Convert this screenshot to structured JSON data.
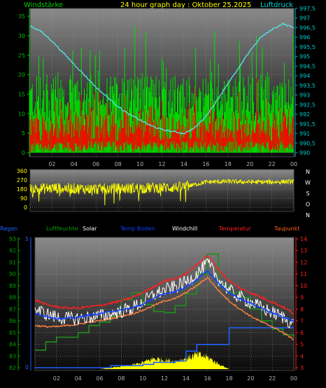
{
  "header": {
    "title": "24 hour graph day : Oktober 25.2025",
    "left_label": "Windstärke",
    "right_label": "Luftdruck"
  },
  "colors": {
    "wind_gust": "#00e000",
    "wind_avg": "#ff0000",
    "pressure": "#55e0e0",
    "direction": "#ffff00",
    "rain": "#2060ff",
    "humidity": "#00a000",
    "solar": "#ffff00",
    "ground_temp": "#1040ff",
    "windchill": "#ffffff",
    "temperature": "#ff2020",
    "dewpoint": "#ff8040"
  },
  "time_ticks": [
    "02",
    "04",
    "06",
    "08",
    "10",
    "12",
    "14",
    "16",
    "18",
    "20",
    "22",
    "00"
  ],
  "chart_data": [
    {
      "type": "bar",
      "name": "wind",
      "ylim": [
        0,
        37
      ],
      "y_ticks": [
        "0",
        "5",
        "10",
        "15",
        "20",
        "25",
        "30",
        "35"
      ],
      "series": [
        {
          "name": "Windstärke",
          "description_values": {
            "gust_typical_range": [
              10,
              20
            ],
            "avg_typical_range": [
              3,
              10
            ]
          }
        }
      ]
    },
    {
      "type": "line",
      "name": "pressure",
      "ylim": [
        990,
        997.5
      ],
      "y_ticks": [
        "990",
        "990,5",
        "991",
        "991,5",
        "992",
        "992,5",
        "993",
        "993,5",
        "994",
        "994,5",
        "995",
        "995,5",
        "996",
        "996,5",
        "997",
        "997,5"
      ],
      "series": [
        {
          "name": "Luftdruck",
          "hours": [
            0,
            1,
            2,
            3,
            4,
            5,
            6,
            7,
            8,
            9,
            10,
            11,
            12,
            13,
            14,
            15,
            16,
            17,
            18,
            19,
            20,
            21,
            22,
            23,
            24
          ],
          "values": [
            996.6,
            996.3,
            995.8,
            995.2,
            994.6,
            994.0,
            993.4,
            992.9,
            992.4,
            992.0,
            991.7,
            991.4,
            991.2,
            991.1,
            991.0,
            991.3,
            991.9,
            992.7,
            993.6,
            994.4,
            995.3,
            996.0,
            996.4,
            996.7,
            996.5
          ]
        }
      ]
    },
    {
      "type": "line",
      "name": "wind-direction",
      "ylim": [
        0,
        360
      ],
      "y_ticks": [
        "0",
        "90",
        "180",
        "270",
        "360"
      ],
      "right_labels": [
        "N",
        "W",
        "S",
        "O",
        "N"
      ],
      "series": [
        {
          "name": "direction",
          "hours": [
            0,
            2,
            4,
            6,
            8,
            10,
            12,
            14,
            16,
            18,
            20,
            22,
            24
          ],
          "values": [
            180,
            190,
            185,
            180,
            185,
            190,
            195,
            200,
            250,
            255,
            250,
            250,
            255
          ]
        }
      ]
    },
    {
      "type": "line",
      "name": "climate",
      "legend": [
        "Regen",
        "Luftfeuchte",
        "Solar",
        "Temp Boden",
        "Windchill",
        "Temperatur",
        "Taupunkt"
      ],
      "left_axis_humidity": {
        "ylim": [
          82,
          93
        ],
        "ticks": [
          "82",
          "83",
          "84",
          "85",
          "86",
          "87",
          "88",
          "89",
          "90",
          "91",
          "92",
          "93"
        ]
      },
      "left_axis_rain": {
        "ticks": [
          "0",
          "5"
        ]
      },
      "right_axis_temp": {
        "ylim": [
          3,
          14
        ],
        "ticks": [
          "3",
          "4",
          "5",
          "6",
          "7",
          "8",
          "9",
          "10",
          "11",
          "12",
          "13",
          "14"
        ]
      },
      "series": [
        {
          "name": "Temperatur",
          "hours": [
            0,
            1,
            2,
            3,
            4,
            5,
            6,
            7,
            8,
            9,
            10,
            11,
            12,
            13,
            14,
            15,
            16,
            17,
            18,
            19,
            20,
            21,
            22,
            23,
            24
          ],
          "values": [
            8.8,
            8.4,
            8.2,
            8.1,
            8.1,
            8.2,
            8.3,
            8.5,
            8.7,
            9.0,
            9.4,
            9.9,
            10.4,
            10.6,
            11.0,
            11.8,
            12.6,
            11.4,
            10.4,
            9.8,
            9.4,
            9.0,
            8.6,
            8.2,
            7.6
          ]
        },
        {
          "name": "Windchill",
          "hours": [
            0,
            1,
            2,
            3,
            4,
            5,
            6,
            7,
            8,
            9,
            10,
            11,
            12,
            13,
            14,
            15,
            16,
            17,
            18,
            19,
            20,
            21,
            22,
            23,
            24
          ],
          "values": [
            8.0,
            7.6,
            7.3,
            7.2,
            7.2,
            7.3,
            7.4,
            7.6,
            7.8,
            8.1,
            8.6,
            9.2,
            9.6,
            9.9,
            10.3,
            11.0,
            11.9,
            10.6,
            9.6,
            9.0,
            8.6,
            8.1,
            7.7,
            7.3,
            6.7
          ]
        },
        {
          "name": "Temp Boden",
          "hours": [
            0,
            1,
            2,
            3,
            4,
            5,
            6,
            7,
            8,
            9,
            10,
            11,
            12,
            13,
            14,
            15,
            16,
            17,
            18,
            19,
            20,
            21,
            22,
            23,
            24
          ],
          "values": [
            7.6,
            7.4,
            7.2,
            7.2,
            7.3,
            7.5,
            7.6,
            7.8,
            7.9,
            8.1,
            8.4,
            8.9,
            9.3,
            9.5,
            9.9,
            10.5,
            11.3,
            10.2,
            9.4,
            8.9,
            8.5,
            8.1,
            7.7,
            7.3,
            7.0
          ]
        },
        {
          "name": "Taupunkt",
          "hours": [
            0,
            1,
            2,
            3,
            4,
            5,
            6,
            7,
            8,
            9,
            10,
            11,
            12,
            13,
            14,
            15,
            16,
            17,
            18,
            19,
            20,
            21,
            22,
            23,
            24
          ],
          "values": [
            6.6,
            6.5,
            6.5,
            6.6,
            6.7,
            6.9,
            7.0,
            7.2,
            7.4,
            7.6,
            7.9,
            8.3,
            8.7,
            8.9,
            9.4,
            10.0,
            10.7,
            9.6,
            8.7,
            8.0,
            7.4,
            6.9,
            6.5,
            6.0,
            5.4
          ]
        },
        {
          "name": "Luftfeuchte",
          "hours": [
            0,
            1,
            2,
            3,
            4,
            5,
            6,
            7,
            8,
            9,
            10,
            11,
            12,
            13,
            14,
            15,
            16,
            17,
            18,
            19,
            20,
            21,
            22,
            23,
            24
          ],
          "values": [
            83.5,
            84.2,
            84.6,
            84.6,
            85.0,
            85.6,
            85.9,
            86.4,
            87.8,
            88.4,
            87.4,
            86.8,
            86.7,
            87.3,
            88.3,
            90.0,
            91.7,
            89.0,
            88.4,
            88.0,
            87.0,
            86.0,
            85.3,
            84.8,
            84.5
          ]
        },
        {
          "name": "Regen",
          "hours": [
            0,
            6,
            7,
            10,
            11,
            13,
            14,
            15,
            17,
            18,
            19,
            22,
            24
          ],
          "values": [
            0,
            0,
            0.3,
            0.5,
            0.8,
            1.0,
            2.5,
            3.5,
            3.5,
            6.0,
            6.0,
            6.0,
            6.0
          ]
        },
        {
          "name": "Solar",
          "hours": [
            6,
            7,
            8,
            9,
            10,
            11,
            12,
            13,
            14,
            15,
            16,
            17,
            18
          ],
          "values": [
            0,
            0.2,
            0.4,
            0.6,
            1.0,
            1.6,
            1.4,
            1.2,
            1.6,
            2.2,
            1.8,
            0.8,
            0
          ]
        }
      ]
    }
  ]
}
